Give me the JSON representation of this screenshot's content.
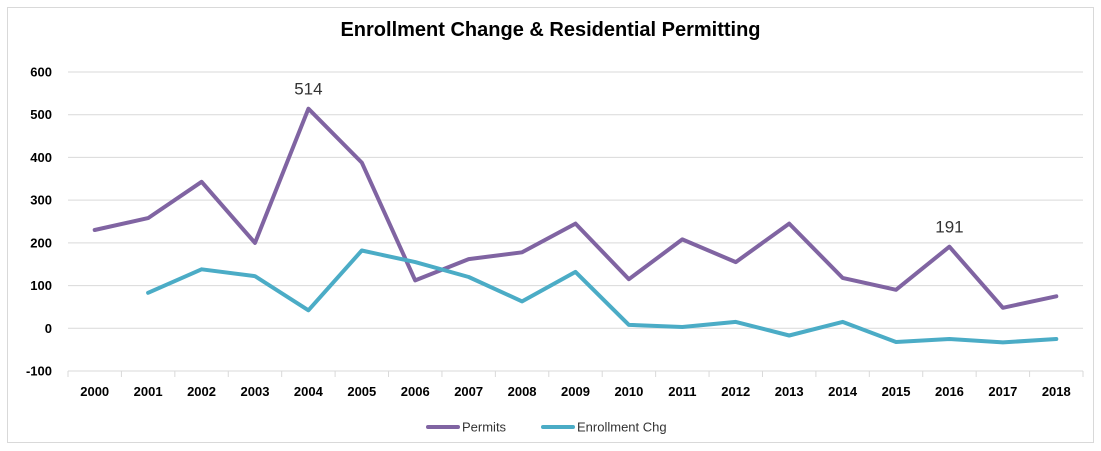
{
  "chart_data": {
    "type": "line",
    "title": "Enrollment Change & Residential Permitting",
    "xlabel": "",
    "ylabel": "",
    "x": [
      "2000",
      "2001",
      "2002",
      "2003",
      "2004",
      "2005",
      "2006",
      "2007",
      "2008",
      "2009",
      "2010",
      "2011",
      "2012",
      "2013",
      "2014",
      "2015",
      "2016",
      "2017",
      "2018"
    ],
    "ylim": [
      -100,
      600
    ],
    "yticks": [
      -100,
      0,
      100,
      200,
      300,
      400,
      500,
      600
    ],
    "grid": true,
    "legend_position": "bottom",
    "series": [
      {
        "name": "Permits",
        "color": "#8064a2",
        "values": [
          230,
          258,
          343,
          200,
          514,
          388,
          112,
          162,
          178,
          245,
          115,
          208,
          155,
          245,
          118,
          90,
          191,
          48,
          75
        ]
      },
      {
        "name": "Enrollment Chg",
        "color": "#4bacc6",
        "values": [
          null,
          83,
          138,
          122,
          42,
          182,
          155,
          120,
          63,
          132,
          8,
          3,
          15,
          -17,
          15,
          -32,
          -25,
          -33,
          -25
        ]
      }
    ],
    "annotations": [
      {
        "series": "Permits",
        "x": "2004",
        "text": "514"
      },
      {
        "series": "Permits",
        "x": "2016",
        "text": "191"
      }
    ]
  }
}
